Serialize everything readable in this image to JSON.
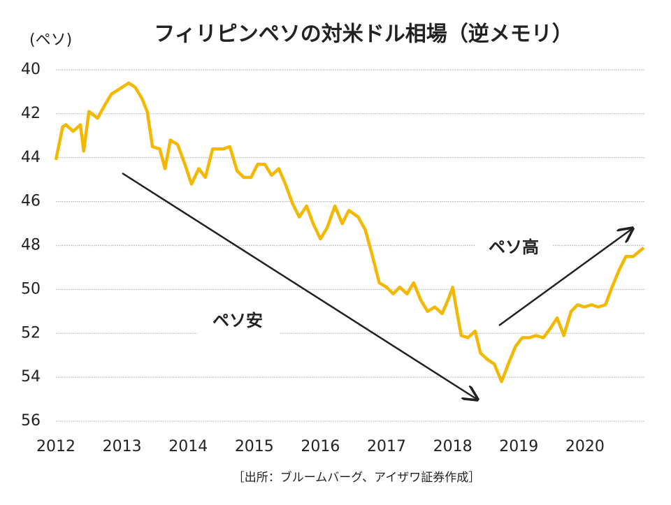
{
  "chart_data": {
    "type": "line",
    "title": "フィリピンペソの対米ドル相場（逆メモリ）",
    "y_label": "(ペソ)",
    "source": "［出所：ブルームバーグ、アイザワ証券作成］",
    "annotations": [
      "ペソ安",
      "ペソ高"
    ],
    "color": "#f5b800",
    "y_inverted": true,
    "grid": true,
    "xlim": [
      2012,
      2020.9
    ],
    "xticks": [
      2012,
      2013,
      2014,
      2015,
      2016,
      2017,
      2018,
      2019,
      2020
    ],
    "ylim": [
      40,
      56
    ],
    "yticks": [
      40,
      42,
      44,
      46,
      48,
      50,
      52,
      54,
      56
    ],
    "x": [
      2012.0,
      2012.1,
      2012.15,
      2012.26,
      2012.37,
      2012.42,
      2012.5,
      2012.63,
      2012.74,
      2012.84,
      2013.0,
      2013.1,
      2013.2,
      2013.3,
      2013.38,
      2013.46,
      2013.57,
      2013.65,
      2013.73,
      2013.84,
      2013.95,
      2014.05,
      2014.16,
      2014.26,
      2014.37,
      2014.53,
      2014.63,
      2014.74,
      2014.84,
      2014.95,
      2015.05,
      2015.16,
      2015.26,
      2015.37,
      2015.47,
      2015.58,
      2015.68,
      2015.79,
      2015.89,
      2016.0,
      2016.1,
      2016.22,
      2016.33,
      2016.43,
      2016.57,
      2016.68,
      2016.78,
      2016.89,
      2017.0,
      2017.1,
      2017.2,
      2017.31,
      2017.41,
      2017.52,
      2017.62,
      2017.73,
      2017.84,
      2017.94,
      2018.0,
      2018.05,
      2018.13,
      2018.23,
      2018.34,
      2018.42,
      2018.53,
      2018.63,
      2018.74,
      2018.84,
      2018.95,
      2019.05,
      2019.16,
      2019.26,
      2019.37,
      2019.47,
      2019.58,
      2019.68,
      2019.79,
      2019.89,
      2019.99,
      2020.1,
      2020.2,
      2020.31,
      2020.41,
      2020.52,
      2020.62,
      2020.73,
      2020.89
    ],
    "values": [
      44.1,
      42.6,
      42.5,
      42.8,
      42.5,
      43.7,
      41.9,
      42.2,
      41.6,
      41.1,
      40.8,
      40.6,
      40.8,
      41.3,
      41.9,
      43.5,
      43.6,
      44.5,
      43.2,
      43.4,
      44.3,
      45.2,
      44.5,
      44.9,
      43.6,
      43.6,
      43.5,
      44.6,
      44.9,
      44.9,
      44.3,
      44.3,
      44.8,
      44.5,
      45.2,
      46.1,
      46.7,
      46.2,
      47.0,
      47.7,
      47.2,
      46.2,
      47.0,
      46.4,
      46.7,
      47.3,
      48.4,
      49.7,
      49.9,
      50.2,
      49.9,
      50.2,
      49.7,
      50.5,
      51.0,
      50.8,
      51.1,
      50.4,
      49.9,
      50.8,
      52.1,
      52.2,
      51.9,
      52.9,
      53.2,
      53.4,
      54.2,
      53.4,
      52.6,
      52.2,
      52.2,
      52.1,
      52.2,
      51.8,
      51.3,
      52.1,
      51.0,
      50.7,
      50.8,
      50.7,
      50.8,
      50.7,
      49.9,
      49.1,
      48.5,
      48.5,
      48.1
    ]
  }
}
